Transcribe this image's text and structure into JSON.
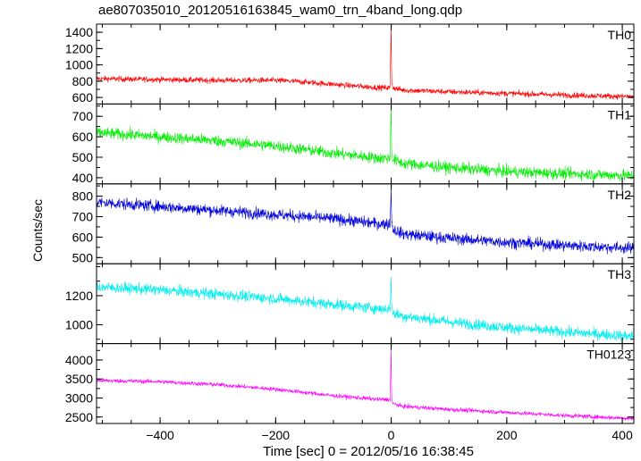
{
  "chart_data": {
    "type": "line",
    "title": "ae807035010_20120516163845_wam0_trn_4band_long.qdp",
    "xlabel": "Time [sec] 0 = 2012/05/16 16:38:45",
    "ylabel": "Counts/sec",
    "xlim": [
      -510,
      420
    ],
    "x_ticks": [
      -400,
      -200,
      0,
      200,
      400
    ],
    "x_tick_labels": [
      "−400",
      "−200",
      "0",
      "200",
      "400"
    ],
    "grid": false,
    "legend": "none",
    "panels": [
      {
        "label": "TH0",
        "color": "#ff0000",
        "ylim": [
          520,
          1500
        ],
        "y_ticks": [
          600,
          800,
          1000,
          1200,
          1400
        ],
        "y_tick_labels": [
          "600",
          "800",
          "1000",
          "1200",
          "1400"
        ],
        "noise": 35,
        "series_x": [
          -510,
          -400,
          -300,
          -200,
          -150,
          -80,
          -20,
          -2,
          0,
          0.6,
          1.5,
          3,
          20,
          100,
          200,
          300,
          420
        ],
        "series_y": [
          830,
          820,
          810,
          810,
          790,
          750,
          720,
          720,
          1500,
          900,
          780,
          720,
          690,
          670,
          650,
          630,
          610
        ]
      },
      {
        "label": "TH1",
        "color": "#00ee00",
        "ylim": [
          370,
          760
        ],
        "y_ticks": [
          400,
          500,
          600,
          700
        ],
        "y_tick_labels": [
          "400",
          "500",
          "600",
          "700"
        ],
        "noise": 28,
        "series_x": [
          -510,
          -400,
          -300,
          -200,
          -100,
          -20,
          -2,
          0,
          0.6,
          1.5,
          3,
          20,
          100,
          200,
          300,
          420
        ],
        "series_y": [
          620,
          600,
          580,
          555,
          520,
          495,
          495,
          750,
          560,
          510,
          490,
          470,
          450,
          430,
          420,
          410
        ]
      },
      {
        "label": "TH2",
        "color": "#0000dd",
        "ylim": [
          470,
          860
        ],
        "y_ticks": [
          500,
          600,
          700,
          800
        ],
        "y_tick_labels": [
          "500",
          "600",
          "700",
          "800"
        ],
        "noise": 28,
        "series_x": [
          -510,
          -400,
          -300,
          -200,
          -100,
          -20,
          -2,
          0,
          0.6,
          1.5,
          3,
          20,
          100,
          200,
          300,
          420
        ],
        "series_y": [
          770,
          750,
          730,
          710,
          690,
          665,
          665,
          840,
          700,
          660,
          640,
          615,
          595,
          575,
          560,
          545
        ]
      },
      {
        "label": "TH3",
        "color": "#00eeee",
        "ylim": [
          870,
          1420
        ],
        "y_ticks": [
          1000,
          1200
        ],
        "y_tick_labels": [
          "1000",
          "1200"
        ],
        "noise": 38,
        "series_x": [
          -510,
          -400,
          -300,
          -200,
          -100,
          -20,
          -2,
          0,
          0.6,
          1.5,
          3,
          20,
          100,
          200,
          300,
          420
        ],
        "series_y": [
          1260,
          1240,
          1210,
          1180,
          1140,
          1110,
          1110,
          1330,
          1150,
          1100,
          1080,
          1060,
          1020,
          980,
          950,
          920
        ]
      },
      {
        "label": "TH0123",
        "color": "#ff00ff",
        "ylim": [
          2330,
          4430
        ],
        "y_ticks": [
          2500,
          3000,
          3500,
          4000
        ],
        "y_tick_labels": [
          "2500",
          "3000",
          "3500",
          "4000"
        ],
        "noise": 55,
        "series_x": [
          -510,
          -400,
          -300,
          -200,
          -100,
          -20,
          -2,
          0,
          0.6,
          1.5,
          3,
          20,
          100,
          200,
          300,
          420
        ],
        "series_y": [
          3460,
          3430,
          3350,
          3230,
          3060,
          2960,
          2960,
          4300,
          3100,
          2900,
          2850,
          2780,
          2700,
          2620,
          2540,
          2460
        ]
      }
    ]
  }
}
